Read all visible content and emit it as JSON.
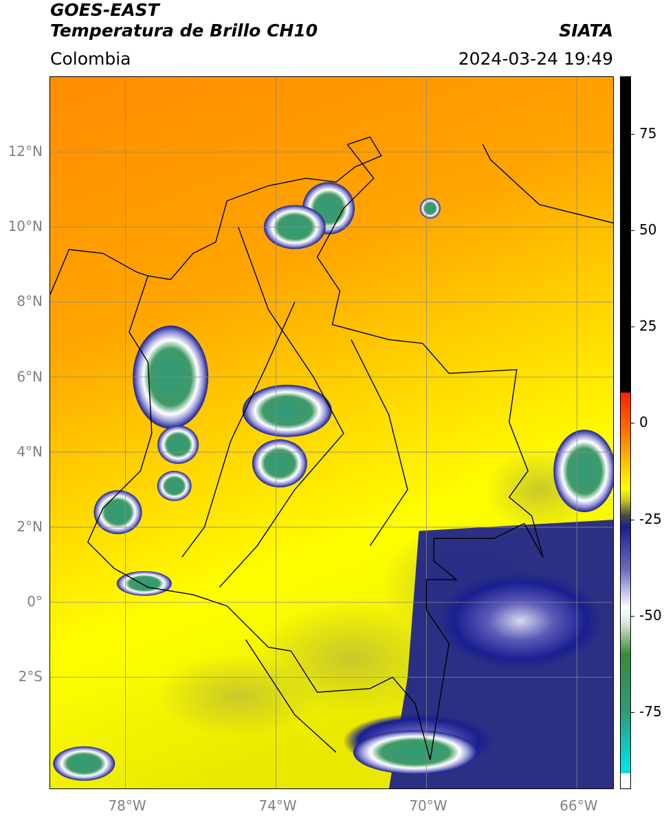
{
  "header": {
    "satellite": "GOES-EAST",
    "product": "Temperatura de Brillo CH10",
    "region": "Colombia",
    "org": "SIATA",
    "datetime": "2024-03-24 19:49"
  },
  "map": {
    "lon_range": [
      -80,
      -65
    ],
    "lat_range": [
      -5,
      14
    ],
    "lon_ticks": [
      {
        "lon": -78,
        "label": "78°W"
      },
      {
        "lon": -74,
        "label": "74°W"
      },
      {
        "lon": -70,
        "label": "70°W"
      },
      {
        "lon": -66,
        "label": "66°W"
      }
    ],
    "lat_ticks": [
      {
        "lat": 12,
        "label": "12°N"
      },
      {
        "lat": 10,
        "label": "10°N"
      },
      {
        "lat": 8,
        "label": "8°N"
      },
      {
        "lat": 6,
        "label": "6°N"
      },
      {
        "lat": 4,
        "label": "4°N"
      },
      {
        "lat": 2,
        "label": "2°N"
      },
      {
        "lat": 0,
        "label": "0°"
      },
      {
        "lat": -2,
        "label": "2°S"
      }
    ],
    "gridlines": true,
    "colors": {
      "warm_orange": "#ff8c00",
      "mid_orange": "#ffa500",
      "yellow": "#ffff00",
      "olive": "#c8c82a",
      "navy": "#1a1f8f",
      "white": "#ffffff",
      "green": "#2f9a7a"
    }
  },
  "colorbar": {
    "vmin": -95,
    "vmax": 90,
    "ticks": [
      {
        "value": 75,
        "label": "75"
      },
      {
        "value": 50,
        "label": "50"
      },
      {
        "value": 25,
        "label": "25"
      },
      {
        "value": 0,
        "label": "0"
      },
      {
        "value": -25,
        "label": "-25"
      },
      {
        "value": -50,
        "label": "-50"
      },
      {
        "value": -75,
        "label": "-75"
      }
    ]
  }
}
